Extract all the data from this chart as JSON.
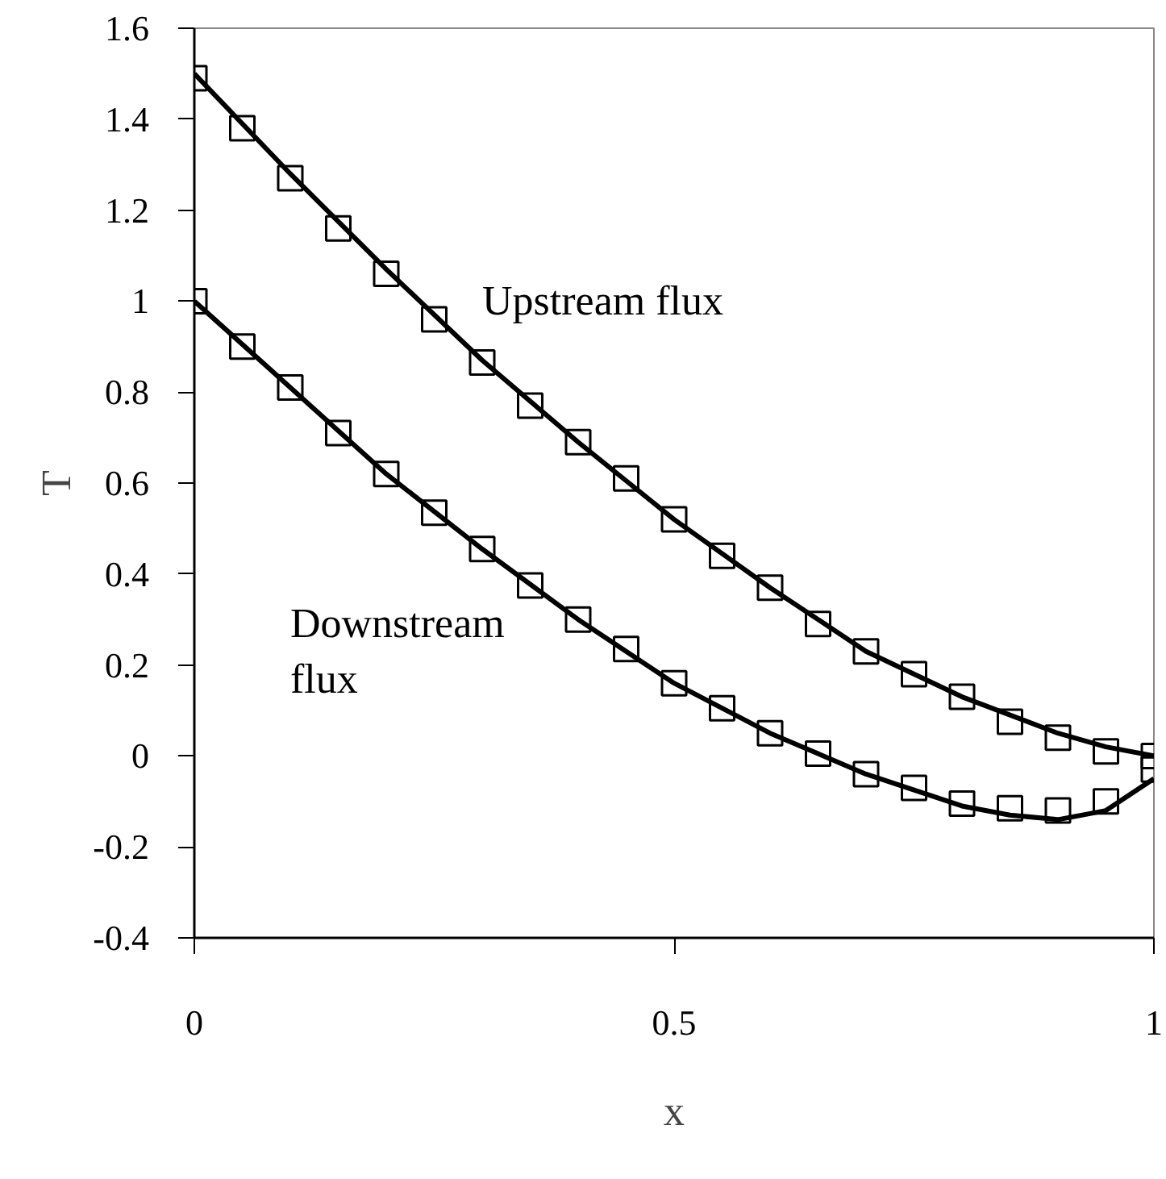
{
  "chart_data": {
    "type": "line",
    "xlabel": "x",
    "ylabel": "T",
    "xlim": [
      0,
      1
    ],
    "ylim": [
      -0.4,
      1.6
    ],
    "xticks": [
      0,
      0.5,
      1
    ],
    "yticks": [
      {
        "value": -0.4,
        "label": "-0.4"
      },
      {
        "value": -0.2,
        "label": "-0.2"
      },
      0,
      {
        "value": 0.2,
        "label": "0.2"
      },
      {
        "value": 0.4,
        "label": "0.4"
      },
      {
        "value": 0.6,
        "label": "0.6"
      },
      {
        "value": 0.8,
        "label": "0.8"
      },
      1,
      {
        "value": 1.2,
        "label": "1.2"
      },
      {
        "value": 1.4,
        "label": "1.4"
      },
      {
        "value": 1.6,
        "label": "1.6"
      }
    ],
    "grid": false,
    "line_style": "solid",
    "series": [
      {
        "color": "#000000",
        "marker": "none",
        "x": [
          0,
          0.1,
          0.2,
          0.3,
          0.4,
          0.5,
          0.6,
          0.7,
          0.8,
          0.9,
          0.95,
          1
        ],
        "values": [
          1.5,
          1.28,
          1.07,
          0.87,
          0.69,
          0.52,
          0.37,
          0.23,
          0.13,
          0.05,
          0.02,
          0.0
        ]
      },
      {
        "color": "#000000",
        "marker": "none",
        "x": [
          0,
          0.1,
          0.2,
          0.3,
          0.4,
          0.5,
          0.6,
          0.7,
          0.8,
          0.85,
          0.9,
          0.95,
          1
        ],
        "values": [
          1.0,
          0.81,
          0.62,
          0.455,
          0.3,
          0.16,
          0.05,
          -0.04,
          -0.11,
          -0.13,
          -0.14,
          -0.12,
          -0.05
        ]
      },
      {
        "type": "scatter",
        "color": "#000000",
        "marker": "square",
        "x": [
          0,
          0.05,
          0.1,
          0.15,
          0.2,
          0.25,
          0.3,
          0.35,
          0.4,
          0.45,
          0.5,
          0.55,
          0.6,
          0.65,
          0.7,
          0.75,
          0.8,
          0.85,
          0.9,
          0.95,
          1
        ],
        "values": [
          1.49,
          1.38,
          1.27,
          1.16,
          1.06,
          0.96,
          0.865,
          0.77,
          0.69,
          0.61,
          0.52,
          0.44,
          0.37,
          0.29,
          0.23,
          0.18,
          0.13,
          0.075,
          0.04,
          0.01,
          0.0
        ]
      },
      {
        "type": "scatter",
        "color": "#000000",
        "marker": "square",
        "x": [
          0,
          0.05,
          0.1,
          0.15,
          0.2,
          0.25,
          0.3,
          0.35,
          0.4,
          0.45,
          0.5,
          0.55,
          0.6,
          0.65,
          0.7,
          0.75,
          0.8,
          0.85,
          0.9,
          0.95,
          1
        ],
        "values": [
          1.0,
          0.9,
          0.81,
          0.71,
          0.62,
          0.535,
          0.455,
          0.375,
          0.3,
          0.235,
          0.16,
          0.105,
          0.05,
          0.005,
          -0.04,
          -0.07,
          -0.105,
          -0.115,
          -0.12,
          -0.1,
          -0.03
        ]
      }
    ],
    "annotations": [
      "Upstream flux",
      "Downstream\nflux"
    ]
  }
}
